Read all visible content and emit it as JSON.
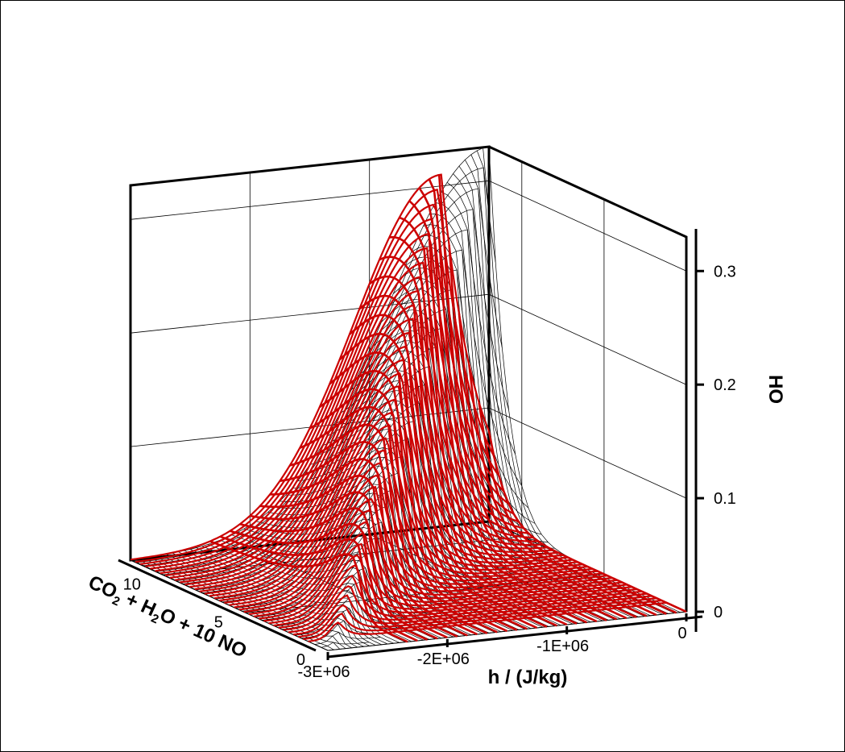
{
  "chart_data": {
    "type": "surface3d",
    "title": "",
    "x_axis": {
      "label": "h / (J/kg)",
      "range": [
        -3000000,
        0
      ],
      "ticks": [
        -3000000,
        -2000000,
        -1000000,
        0
      ],
      "tick_labels": [
        "-3E+06",
        "-2E+06",
        "-1E+06",
        "0"
      ]
    },
    "y_axis": {
      "label_parts": [
        "CO",
        "2",
        " + H",
        "2",
        "O + 10 NO"
      ],
      "range": [
        0,
        12
      ],
      "ticks": [
        0,
        5,
        10
      ],
      "tick_labels": [
        "0",
        "5",
        "10"
      ]
    },
    "z_axis": {
      "label": "HO",
      "range": [
        0,
        0.33
      ],
      "ticks": [
        0,
        0.1,
        0.2,
        0.3
      ],
      "tick_labels": [
        "0",
        "0.1",
        "0.2",
        "0.3"
      ]
    },
    "surfaces": [
      {
        "color": "#000000",
        "style": "mesh",
        "peak_value": 0.33,
        "peak_at": {
          "h": 0,
          "progress": 12
        }
      },
      {
        "color": "#cc0000",
        "style": "lines",
        "peak_value": 0.31,
        "peak_at": {
          "h": -400000,
          "progress": 12
        }
      }
    ],
    "grid": true,
    "legend": "none"
  },
  "colors": {
    "mesh": "#000000",
    "red_lines": "#cc0000",
    "axes": "#000000",
    "grid": "#000000"
  }
}
